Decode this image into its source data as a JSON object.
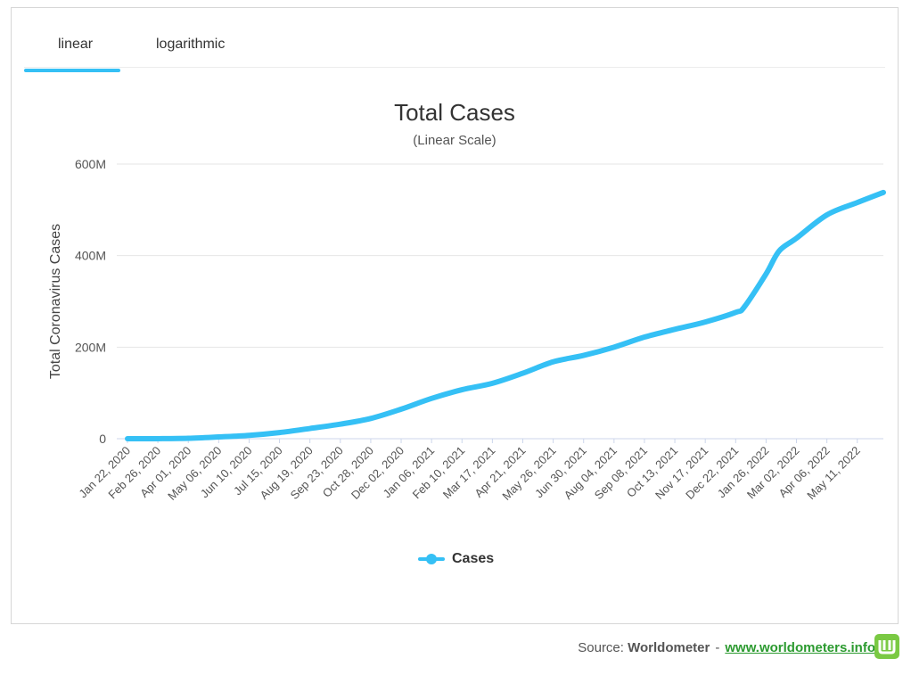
{
  "tabs": {
    "linear": "linear",
    "logarithmic": "logarithmic",
    "active": "linear"
  },
  "colors": {
    "series": "#35c0f5",
    "tab_accent": "#35c0f5",
    "gridline": "#e6e6e6",
    "link": "#2b9a2f",
    "logo": "#7ac943"
  },
  "chart_data": {
    "type": "line",
    "title": "Total Cases",
    "subtitle": "(Linear Scale)",
    "xlabel": "",
    "ylabel": "Total Coronavirus Cases",
    "ylim": [
      0,
      600000000
    ],
    "yticks": [
      {
        "value": 0,
        "label": "0"
      },
      {
        "value": 200000000,
        "label": "200M"
      },
      {
        "value": 400000000,
        "label": "400M"
      },
      {
        "value": 600000000,
        "label": "600M"
      }
    ],
    "x_tick_labels": [
      "Jan 22, 2020",
      "Feb 26, 2020",
      "Apr 01, 2020",
      "May 06, 2020",
      "Jun 10, 2020",
      "Jul 15, 2020",
      "Aug 19, 2020",
      "Sep 23, 2020",
      "Oct 28, 2020",
      "Dec 02, 2020",
      "Jan 06, 2021",
      "Feb 10, 2021",
      "Mar 17, 2021",
      "Apr 21, 2021",
      "May 26, 2021",
      "Jun 30, 2021",
      "Aug 04, 2021",
      "Sep 08, 2021",
      "Oct 13, 2021",
      "Nov 17, 2021",
      "Dec 22, 2021",
      "Jan 26, 2022",
      "Mar 02, 2022",
      "Apr 06, 2022",
      "May 11, 2022"
    ],
    "grid": true,
    "legend_position": "bottom-center",
    "series": [
      {
        "name": "Cases",
        "x": [
          "Jan 22, 2020",
          "Feb 26, 2020",
          "Apr 01, 2020",
          "May 06, 2020",
          "Jun 10, 2020",
          "Jul 15, 2020",
          "Aug 19, 2020",
          "Sep 23, 2020",
          "Oct 28, 2020",
          "Dec 02, 2020",
          "Jan 06, 2021",
          "Feb 10, 2021",
          "Mar 17, 2021",
          "Apr 21, 2021",
          "May 26, 2021",
          "Jun 30, 2021",
          "Aug 04, 2021",
          "Sep 08, 2021",
          "Oct 13, 2021",
          "Nov 17, 2021",
          "Dec 22, 2021",
          "Jan 01, 2022",
          "Jan 26, 2022",
          "Feb 10, 2022",
          "Mar 02, 2022",
          "Apr 06, 2022",
          "May 11, 2022",
          "Jun 10, 2022"
        ],
        "values": [
          600,
          85000,
          900000,
          3800000,
          7300000,
          13400000,
          22300000,
          31800000,
          44200000,
          64500000,
          88000000,
          107000000,
          121000000,
          143000000,
          168000000,
          182000000,
          200000000,
          222000000,
          239000000,
          255000000,
          276000000,
          288000000,
          360000000,
          410000000,
          438000000,
          489000000,
          516000000,
          538000000
        ]
      }
    ]
  },
  "legend": {
    "label": "Cases"
  },
  "source": {
    "prefix": "Source:",
    "name": "Worldometer",
    "separator": "-",
    "link_text": "www.worldometers.info"
  }
}
